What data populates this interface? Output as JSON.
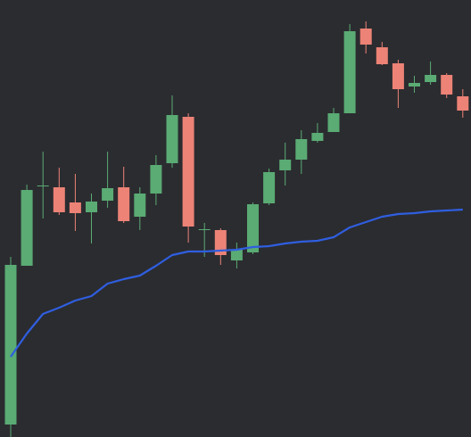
{
  "chart_data": {
    "type": "candlestick",
    "open": [
      14,
      192,
      281,
      280,
      263,
      252,
      265,
      280,
      247,
      273,
      307,
      359,
      232,
      232,
      198,
      207,
      262,
      299,
      311,
      332,
      342,
      363,
      458,
      437,
      419,
      393,
      398,
      406,
      382
    ],
    "high": [
      202,
      283,
      320,
      302,
      295,
      273,
      320,
      303,
      280,
      316,
      383,
      363,
      240,
      234,
      218,
      263,
      301,
      330,
      344,
      352,
      369,
      463,
      466,
      443,
      423,
      405,
      421,
      408,
      390
    ],
    "low": [
      0,
      192,
      245,
      249,
      231,
      217,
      257,
      240,
      232,
      260,
      302,
      218,
      202,
      193,
      189,
      205,
      260,
      282,
      295,
      330,
      342,
      363,
      430,
      417,
      369,
      386,
      395,
      380,
      358
    ],
    "close": [
      193,
      277,
      282,
      252,
      251,
      264,
      279,
      242,
      273,
      305,
      361,
      236,
      233,
      204,
      210,
      261,
      297,
      311,
      334,
      341,
      363,
      455,
      440,
      418,
      390,
      397,
      406,
      384,
      366
    ],
    "up_color": "#5aab74",
    "down_color": "#ec8376",
    "moving_average": {
      "color": "#2f5ee0",
      "values": [
        90,
        116,
        138,
        145,
        153,
        158,
        172,
        177,
        181,
        192,
        204,
        208,
        208,
        209,
        210,
        213,
        214,
        217,
        219,
        220,
        224,
        235,
        241,
        247,
        250,
        251,
        253,
        254,
        255
      ]
    },
    "ylim": [
      0,
      490
    ]
  }
}
